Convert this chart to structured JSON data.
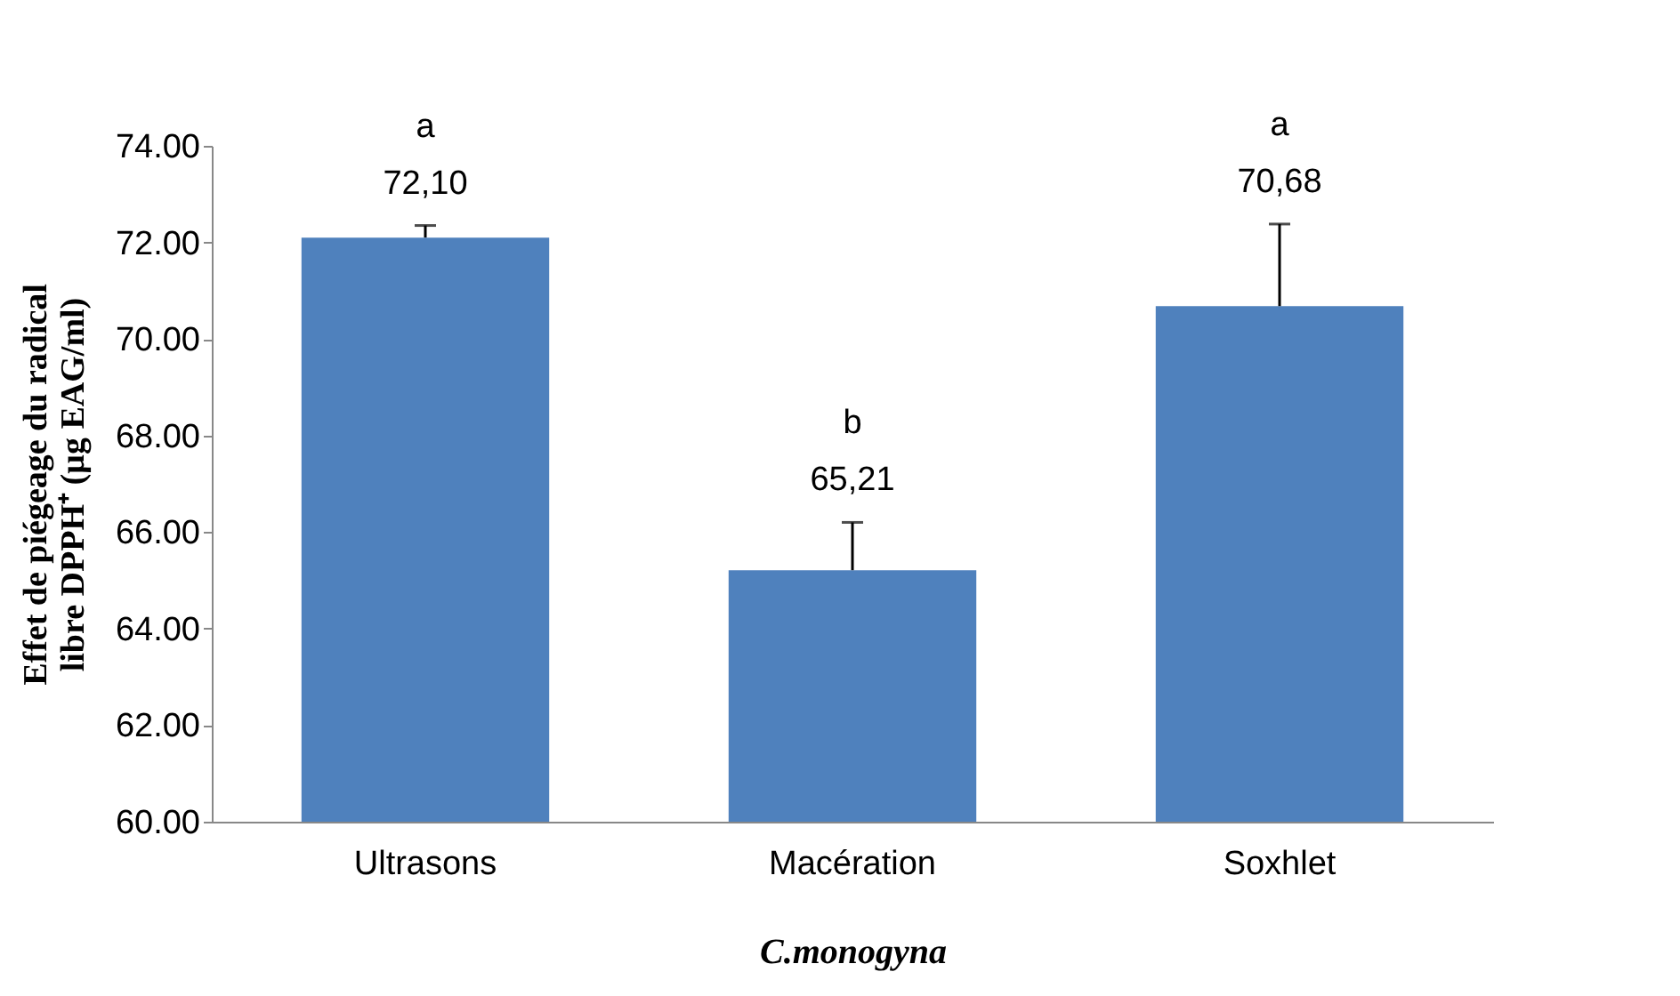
{
  "chart_data": {
    "type": "bar",
    "categories": [
      "Ultrasons",
      "Macération",
      "Soxhlet"
    ],
    "values": [
      72.1,
      65.21,
      70.68
    ],
    "errors": [
      [
        72.1,
        72.35
      ],
      [
        65.21,
        66.2
      ],
      [
        70.68,
        72.38
      ]
    ],
    "value_labels": [
      "72,10",
      "65,21",
      "70,68"
    ],
    "color": "#4f81bd",
    "ylim": [
      60,
      74
    ],
    "yticks": [
      {
        "value": 60,
        "label": "60.00"
      },
      {
        "value": 62,
        "label": "62.00"
      },
      {
        "value": 64,
        "label": "64.00"
      },
      {
        "value": 66,
        "label": "66.00"
      },
      {
        "value": 68,
        "label": "68.00"
      },
      {
        "value": 70,
        "label": "70.00"
      },
      {
        "value": 72,
        "label": "72.00"
      },
      {
        "value": 74,
        "label": "74.00"
      }
    ],
    "ylabel": "Effet de piégeage du radical libre DPPH⁺ (µg EAG/ml)",
    "xlabel": "C.monogyna",
    "annotations": [
      "a",
      "b",
      "a"
    ],
    "grid": false
  }
}
